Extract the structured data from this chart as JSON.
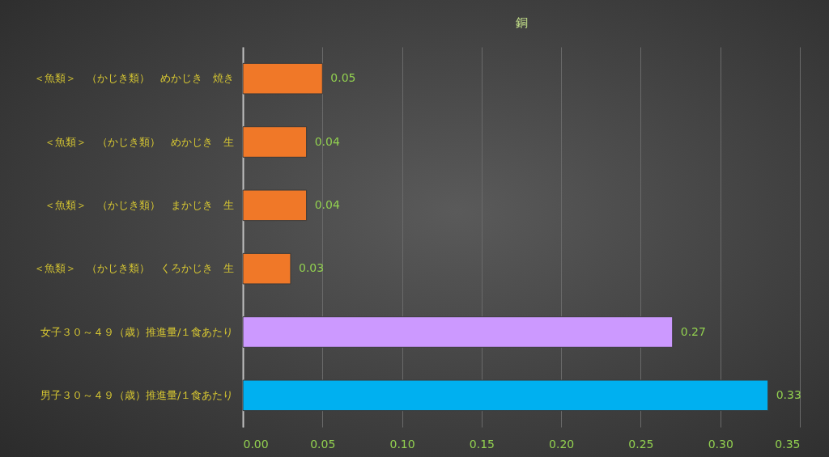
{
  "chart_data": {
    "type": "bar",
    "orientation": "horizontal",
    "title": "銅",
    "categories": [
      "＜魚類＞　（かじき類）　めかじき　焼き",
      "＜魚類＞　（かじき類）　めかじき　生",
      "＜魚類＞　（かじき類）　まかじき　生",
      "＜魚類＞　（かじき類）　くろかじき　生",
      "女子３０～４９（歳）推進量/１食あたり",
      "男子３０～４９（歳）推進量/１食あたり"
    ],
    "values": [
      0.05,
      0.04,
      0.04,
      0.03,
      0.27,
      0.33
    ],
    "colors": [
      "#f07828",
      "#f07828",
      "#f07828",
      "#f07828",
      "#cc99ff",
      "#00b0f0"
    ],
    "xlim": [
      0,
      0.35
    ],
    "xticks": [
      {
        "value": 0,
        "label": "0.00"
      },
      0.05,
      {
        "value": 0.1,
        "label": "0.10"
      },
      0.15,
      {
        "value": 0.2,
        "label": "0.20"
      },
      0.25,
      {
        "value": 0.3,
        "label": "0.30"
      },
      0.35
    ],
    "grid": "x",
    "data_labels": true
  }
}
